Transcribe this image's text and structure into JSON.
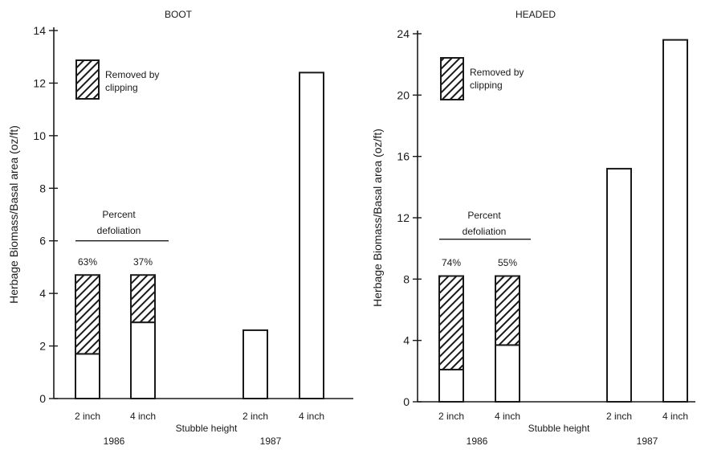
{
  "chart_data": [
    {
      "type": "bar",
      "title": "BOOT",
      "ylabel": "Herbage Biomass/Basal area (oz/ft)",
      "xlabel": "Stubble height",
      "ylim": [
        0,
        14
      ],
      "yticks": [
        0,
        2,
        4,
        6,
        8,
        10,
        12,
        14
      ],
      "groups": [
        "1986",
        "1987"
      ],
      "bars": [
        {
          "category": "2 inch",
          "group": "1986",
          "remaining": 1.7,
          "removed": 3.0,
          "total": 4.7
        },
        {
          "category": "4 inch",
          "group": "1986",
          "remaining": 2.9,
          "removed": 1.8,
          "total": 4.7
        },
        {
          "category": "2 inch",
          "group": "1987",
          "remaining": 2.6,
          "removed": 0,
          "total": 2.6
        },
        {
          "category": "4 inch",
          "group": "1987",
          "remaining": 12.4,
          "removed": 0,
          "total": 12.4
        }
      ],
      "legend": {
        "label_line1": "Removed by",
        "label_line2": "clipping"
      },
      "defoliation": {
        "label_line1": "Percent",
        "label_line2": "defoliation",
        "line_value": 6.0,
        "values": [
          "63%",
          "37%"
        ]
      }
    },
    {
      "type": "bar",
      "title": "HEADED",
      "ylabel": "Herbage Biomass/Basal area (oz/ft)",
      "xlabel": "Stubble height",
      "ylim": [
        0,
        24
      ],
      "yticks": [
        0,
        4,
        8,
        12,
        16,
        20,
        24
      ],
      "groups": [
        "1986",
        "1987"
      ],
      "bars": [
        {
          "category": "2 inch",
          "group": "1986",
          "remaining": 2.1,
          "removed": 6.1,
          "total": 8.2
        },
        {
          "category": "4 inch",
          "group": "1986",
          "remaining": 3.7,
          "removed": 4.5,
          "total": 8.2
        },
        {
          "category": "2 inch",
          "group": "1987",
          "remaining": 15.2,
          "removed": 0,
          "total": 15.2
        },
        {
          "category": "4 inch",
          "group": "1987",
          "remaining": 23.6,
          "removed": 0,
          "total": 23.6
        }
      ],
      "legend": {
        "label_line1": "Removed by",
        "label_line2": "clipping"
      },
      "defoliation": {
        "label_line1": "Percent",
        "label_line2": "defoliation",
        "line_value": 10.6,
        "values": [
          "74%",
          "55%"
        ]
      }
    }
  ]
}
